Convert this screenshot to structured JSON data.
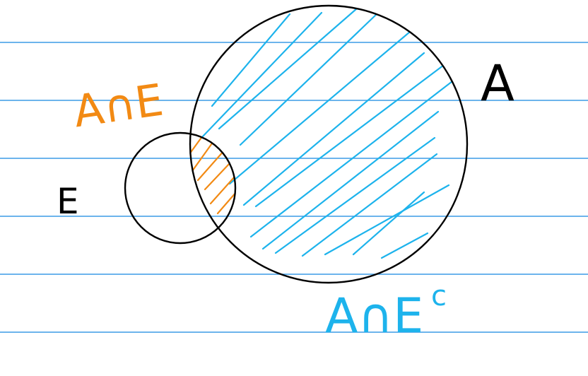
{
  "labels": {
    "set_a": "A",
    "set_e": "E",
    "intersection": "A∩E",
    "a_minus_e": "A∩E",
    "complement_mark": "c"
  },
  "colors": {
    "rule_line": "#3b9be6",
    "ink": "#000000",
    "blue_hatch": "#1db3ec",
    "orange_hatch": "#f28a14",
    "background": "#ffffff"
  }
}
